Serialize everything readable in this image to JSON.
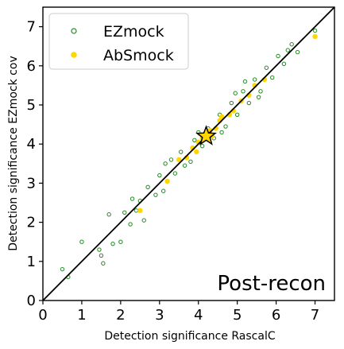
{
  "chart_data": {
    "type": "scatter",
    "title": "",
    "xlabel": "Detection significance RascalC",
    "ylabel": "Detection significance EZmock cov",
    "xlim": [
      0,
      7.5
    ],
    "ylim": [
      0,
      7.5
    ],
    "xticks": [
      "0",
      "1",
      "2",
      "3",
      "4",
      "5",
      "6",
      "7"
    ],
    "yticks": [
      "0",
      "1",
      "2",
      "3",
      "4",
      "5",
      "6",
      "7"
    ],
    "grid": false,
    "legend_position": "upper-left",
    "annotation": "Post-recon",
    "reference_line": {
      "from": [
        0,
        0
      ],
      "to": [
        7.5,
        7.5
      ],
      "color": "#000000"
    },
    "highlight_point": {
      "x": 4.2,
      "y": 4.2,
      "fill": "#ffd700",
      "stroke": "#000000"
    },
    "series": [
      {
        "name": "EZmock",
        "marker": "open-circle",
        "color": "#228b22",
        "points": [
          [
            0.5,
            0.8
          ],
          [
            0.65,
            0.6
          ],
          [
            1.0,
            1.5
          ],
          [
            1.45,
            1.3
          ],
          [
            1.55,
            0.95
          ],
          [
            1.5,
            1.15
          ],
          [
            1.8,
            1.45
          ],
          [
            2.0,
            1.5
          ],
          [
            1.7,
            2.2
          ],
          [
            2.1,
            2.25
          ],
          [
            2.25,
            1.95
          ],
          [
            2.6,
            2.05
          ],
          [
            2.5,
            2.55
          ],
          [
            2.9,
            2.7
          ],
          [
            3.0,
            3.2
          ],
          [
            3.15,
            3.5
          ],
          [
            3.4,
            3.25
          ],
          [
            3.55,
            3.8
          ],
          [
            3.8,
            3.55
          ],
          [
            3.9,
            4.1
          ],
          [
            4.1,
            3.95
          ],
          [
            4.25,
            4.4
          ],
          [
            4.4,
            4.15
          ],
          [
            4.55,
            4.75
          ],
          [
            4.7,
            4.45
          ],
          [
            4.85,
            5.05
          ],
          [
            5.0,
            4.75
          ],
          [
            5.15,
            5.35
          ],
          [
            5.3,
            5.05
          ],
          [
            5.45,
            5.65
          ],
          [
            5.6,
            5.35
          ],
          [
            5.75,
            5.95
          ],
          [
            5.9,
            5.7
          ],
          [
            6.05,
            6.25
          ],
          [
            6.2,
            6.05
          ],
          [
            6.4,
            6.55
          ],
          [
            6.55,
            6.35
          ],
          [
            5.2,
            5.6
          ],
          [
            4.6,
            4.3
          ],
          [
            3.3,
            3.6
          ],
          [
            2.7,
            2.9
          ],
          [
            2.3,
            2.6
          ],
          [
            3.65,
            3.45
          ],
          [
            4.95,
            5.3
          ],
          [
            5.55,
            5.2
          ],
          [
            6.3,
            6.4
          ],
          [
            7.0,
            6.9
          ],
          [
            4.0,
            4.3
          ],
          [
            3.1,
            2.8
          ],
          [
            2.4,
            2.3
          ]
        ]
      },
      {
        "name": "AbSmock",
        "marker": "filled-circle",
        "color": "#ffd700",
        "points": [
          [
            2.5,
            2.3
          ],
          [
            3.2,
            3.05
          ],
          [
            3.5,
            3.6
          ],
          [
            3.7,
            3.65
          ],
          [
            3.85,
            3.9
          ],
          [
            4.0,
            4.05
          ],
          [
            4.1,
            4.15
          ],
          [
            4.3,
            4.35
          ],
          [
            4.45,
            4.4
          ],
          [
            4.55,
            4.6
          ],
          [
            4.6,
            4.7
          ],
          [
            4.8,
            4.75
          ],
          [
            4.9,
            4.85
          ],
          [
            5.1,
            5.1
          ],
          [
            5.3,
            5.25
          ],
          [
            5.45,
            5.5
          ],
          [
            5.7,
            5.65
          ],
          [
            7.0,
            6.75
          ],
          [
            3.95,
            3.8
          ],
          [
            4.35,
            4.2
          ]
        ]
      }
    ]
  }
}
